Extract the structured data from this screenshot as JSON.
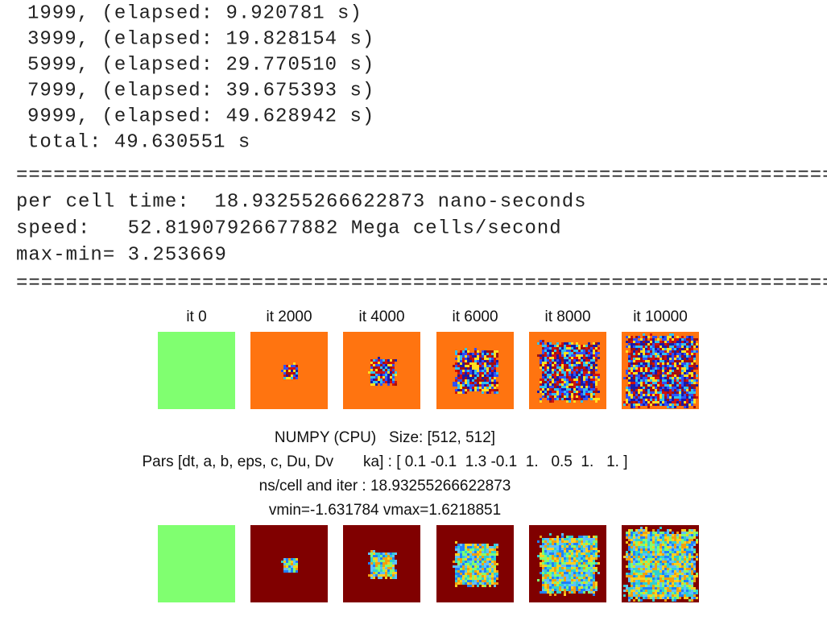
{
  "console": {
    "progress": [
      "1999, (elapsed: 9.920781 s)",
      "3999, (elapsed: 19.828154 s)",
      "5999, (elapsed: 29.770510 s)",
      "7999, (elapsed: 39.675393 s)",
      "9999, (elapsed: 49.628942 s)",
      "total: 49.630551 s"
    ],
    "separator": "==============================================================================",
    "stats": [
      "per cell time:  18.93255266622873 nano-seconds",
      "speed:   52.81907926677882 Mega cells/second",
      "max-min= 3.253669"
    ]
  },
  "figure": {
    "titles": [
      "it 0",
      "it 2000",
      "it 4000",
      "it 6000",
      "it 8000",
      "it 10000"
    ],
    "caption": [
      "NUMPY (CPU)   Size: [512, 512]",
      "Pars [dt, a, b, eps, c, Du, Dv       ka] : [ 0.1 -0.1  1.3 -0.1  1.   0.5  1.   1. ]",
      "ns/cell and iter : 18.93255266622873",
      "vmin=-1.631784 vmax=1.6218851"
    ]
  }
}
